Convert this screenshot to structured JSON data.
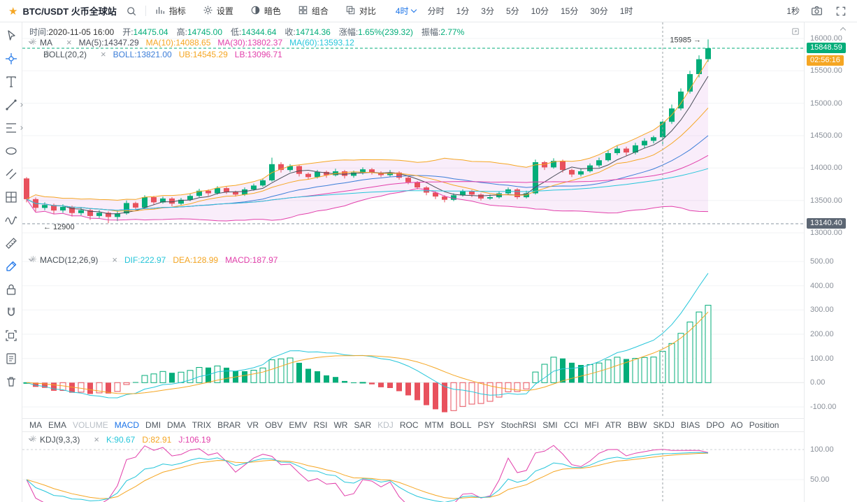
{
  "topbar": {
    "symbol": "BTC/USDT 火币全球站",
    "menu_items": [
      {
        "label": "指标",
        "icon": "indicator-icon"
      },
      {
        "label": "设置",
        "icon": "gear-icon"
      },
      {
        "label": "暗色",
        "icon": "theme-icon"
      },
      {
        "label": "组合",
        "icon": "layout-icon"
      },
      {
        "label": "对比",
        "icon": "compare-icon"
      }
    ],
    "active_timeframe": "4时",
    "timeframes": [
      "分时",
      "1分",
      "3分",
      "5分",
      "10分",
      "15分",
      "30分",
      "1时"
    ],
    "interval_label": "1秒",
    "right_icons": [
      "camera-icon",
      "fullscreen-icon"
    ]
  },
  "left_toolbar": [
    {
      "name": "cursor-icon",
      "active": false,
      "submenu": false
    },
    {
      "name": "crosshair-icon",
      "active": true,
      "submenu": false
    },
    {
      "name": "text-tool-icon",
      "active": false,
      "submenu": false
    },
    {
      "name": "trendline-icon",
      "active": false,
      "submenu": true
    },
    {
      "name": "fibonacci-icon",
      "active": false,
      "submenu": true
    },
    {
      "name": "ellipse-icon",
      "active": false,
      "submenu": false
    },
    {
      "name": "parallel-lines-icon",
      "active": false,
      "submenu": false
    },
    {
      "name": "gann-grid-icon",
      "active": false,
      "submenu": false
    },
    {
      "name": "wave-icon",
      "active": false,
      "submenu": false
    },
    {
      "name": "ruler-icon",
      "active": false,
      "submenu": false
    },
    {
      "name": "brush-icon",
      "active": true,
      "submenu": false
    },
    {
      "name": "lock-icon",
      "active": false,
      "submenu": false
    },
    {
      "name": "magnet-icon",
      "active": false,
      "submenu": false
    },
    {
      "name": "snapshot-icon",
      "active": false,
      "submenu": false
    },
    {
      "name": "order-icon",
      "active": false,
      "submenu": false
    },
    {
      "name": "trash-icon",
      "active": false,
      "submenu": false
    }
  ],
  "info_bar": {
    "time": {
      "label": "时间:",
      "value": "2020-11-05 16:00"
    },
    "fields": [
      {
        "label": "开:",
        "value": "14475.04"
      },
      {
        "label": "高:",
        "value": "14745.00"
      },
      {
        "label": "低:",
        "value": "14344.64"
      },
      {
        "label": "收:",
        "value": "14714.36"
      },
      {
        "label": "涨幅:",
        "value": "1.65%(239.32)"
      },
      {
        "label": "振幅:",
        "value": "2.77%"
      }
    ]
  },
  "legends": {
    "ma": {
      "name": "MA",
      "items": [
        {
          "label": "MA(5):",
          "value": "14347.29",
          "color": "#4a4e59"
        },
        {
          "label": "MA(10):",
          "value": "14088.65",
          "color": "#f5a623"
        },
        {
          "label": "MA(30):",
          "value": "13802.37",
          "color": "#e240ab"
        },
        {
          "label": "MA(60):",
          "value": "13593.12",
          "color": "#26c6da"
        }
      ]
    },
    "boll": {
      "name": "BOLL(20,2)",
      "items": [
        {
          "label": "BOLL:",
          "value": "13821.00",
          "color": "#3b7dd8"
        },
        {
          "label": "UB:",
          "value": "14545.29",
          "color": "#f5a623"
        },
        {
          "label": "LB:",
          "value": "13096.71",
          "color": "#e240ab"
        }
      ]
    },
    "macd": {
      "name": "MACD(12,26,9)",
      "items": [
        {
          "label": "DIF:",
          "value": "222.97",
          "color": "#26c6da"
        },
        {
          "label": "DEA:",
          "value": "128.99",
          "color": "#f5a623"
        },
        {
          "label": "MACD:",
          "value": "187.97",
          "color": "#e240ab"
        }
      ]
    },
    "kdj": {
      "name": "KDJ(9,3,3)",
      "items": [
        {
          "label": "K:",
          "value": "90.67",
          "color": "#26c6da"
        },
        {
          "label": "D:",
          "value": "82.91",
          "color": "#f5a623"
        },
        {
          "label": "J:",
          "value": "106.19",
          "color": "#e240ab"
        }
      ]
    }
  },
  "axes": {
    "main": [
      "16000.00",
      "15500.00",
      "15000.00",
      "14500.00",
      "14000.00",
      "13500.00",
      "13000.00"
    ],
    "macd": [
      "500.00",
      "400.00",
      "300.00",
      "200.00",
      "100.00",
      "0.00",
      "-100.00"
    ],
    "kdj": [
      "100.00",
      "50.00"
    ]
  },
  "badges": {
    "last_price": "15848.59",
    "countdown": "02:56:16",
    "alert_price": "13140.40"
  },
  "annotations": {
    "high_label": "15985 →",
    "low_label": "← 12900"
  },
  "indicator_tabs": [
    {
      "label": "MA",
      "state": "normal"
    },
    {
      "label": "EMA",
      "state": "normal"
    },
    {
      "label": "VOLUME",
      "state": "muted"
    },
    {
      "label": "MACD",
      "state": "active"
    },
    {
      "label": "DMI",
      "state": "normal"
    },
    {
      "label": "DMA",
      "state": "normal"
    },
    {
      "label": "TRIX",
      "state": "normal"
    },
    {
      "label": "BRAR",
      "state": "normal"
    },
    {
      "label": "VR",
      "state": "normal"
    },
    {
      "label": "OBV",
      "state": "normal"
    },
    {
      "label": "EMV",
      "state": "normal"
    },
    {
      "label": "RSI",
      "state": "normal"
    },
    {
      "label": "WR",
      "state": "normal"
    },
    {
      "label": "SAR",
      "state": "normal"
    },
    {
      "label": "KDJ",
      "state": "muted"
    },
    {
      "label": "ROC",
      "state": "normal"
    },
    {
      "label": "MTM",
      "state": "normal"
    },
    {
      "label": "BOLL",
      "state": "normal"
    },
    {
      "label": "PSY",
      "state": "normal"
    },
    {
      "label": "StochRSI",
      "state": "normal"
    },
    {
      "label": "SMI",
      "state": "normal"
    },
    {
      "label": "CCI",
      "state": "normal"
    },
    {
      "label": "MFI",
      "state": "normal"
    },
    {
      "label": "ATR",
      "state": "normal"
    },
    {
      "label": "BBW",
      "state": "normal"
    },
    {
      "label": "SKDJ",
      "state": "normal"
    },
    {
      "label": "BIAS",
      "state": "normal"
    },
    {
      "label": "DPO",
      "state": "normal"
    },
    {
      "label": "AO",
      "state": "normal"
    },
    {
      "label": "Position",
      "state": "normal"
    }
  ],
  "colors": {
    "up": "#03ad79",
    "down": "#e8515d",
    "accent": "#1a73e8",
    "ma5": "#4a4e59",
    "ma10": "#f5a623",
    "ma30": "#e240ab",
    "ma60": "#26c6da",
    "boll_mid": "#3b7dd8",
    "boll_band": "rgba(205,110,215,0.12)",
    "dif": "#26c6da",
    "dea": "#f5a623",
    "countdown": "#f5a623",
    "alert_badge": "#5c6673",
    "grid": "#f2f3f5",
    "crosshair": "#9aa0a6"
  },
  "chart_data": {
    "type": "candlestick",
    "panes": [
      {
        "name": "price",
        "indicators": [
          "MA(5,10,30,60)",
          "BOLL(20,2)"
        ],
        "y_range": [
          13000,
          16000
        ]
      },
      {
        "name": "MACD(12,26,9)",
        "y_range": [
          -100,
          500
        ]
      },
      {
        "name": "KDJ(9,3,3)",
        "y_range": [
          0,
          100
        ]
      }
    ],
    "crosshair_index": 70,
    "candles": [
      [
        13840,
        13860,
        13470,
        13520
      ],
      [
        13520,
        13545,
        13330,
        13385
      ],
      [
        13385,
        13470,
        13350,
        13430
      ],
      [
        13430,
        13450,
        13290,
        13345
      ],
      [
        13345,
        13440,
        13310,
        13400
      ],
      [
        13400,
        13420,
        13250,
        13305
      ],
      [
        13305,
        13390,
        13270,
        13350
      ],
      [
        13350,
        13370,
        13200,
        13260
      ],
      [
        13260,
        13350,
        13230,
        13310
      ],
      [
        13310,
        13330,
        13150,
        13245
      ],
      [
        13245,
        13340,
        13180,
        13300
      ],
      [
        13300,
        13500,
        13280,
        13460
      ],
      [
        13460,
        13480,
        13350,
        13390
      ],
      [
        13390,
        13580,
        13370,
        13550
      ],
      [
        13550,
        13570,
        13430,
        13470
      ],
      [
        13470,
        13560,
        13450,
        13530
      ],
      [
        13530,
        13550,
        13410,
        13450
      ],
      [
        13450,
        13540,
        13430,
        13510
      ],
      [
        13510,
        13600,
        13490,
        13570
      ],
      [
        13570,
        13680,
        13550,
        13650
      ],
      [
        13650,
        13670,
        13570,
        13610
      ],
      [
        13610,
        13720,
        13590,
        13690
      ],
      [
        13690,
        13710,
        13600,
        13630
      ],
      [
        13630,
        13650,
        13560,
        13590
      ],
      [
        13590,
        13700,
        13570,
        13670
      ],
      [
        13670,
        13760,
        13650,
        13730
      ],
      [
        13730,
        13840,
        13710,
        13810
      ],
      [
        13810,
        14160,
        13790,
        14060
      ],
      [
        14060,
        14090,
        13930,
        13970
      ],
      [
        13970,
        14060,
        13940,
        14030
      ],
      [
        14030,
        14050,
        13870,
        13910
      ],
      [
        13910,
        13930,
        13820,
        13860
      ],
      [
        13860,
        13970,
        13840,
        13940
      ],
      [
        13940,
        13960,
        13850,
        13890
      ],
      [
        13890,
        13990,
        13870,
        13950
      ],
      [
        13950,
        13970,
        13840,
        13880
      ],
      [
        13880,
        13960,
        13850,
        13930
      ],
      [
        13930,
        14010,
        13900,
        13980
      ],
      [
        13980,
        14000,
        13900,
        13930
      ],
      [
        13930,
        13950,
        13860,
        13890
      ],
      [
        13890,
        13970,
        13870,
        13930
      ],
      [
        13930,
        13950,
        13820,
        13850
      ],
      [
        13850,
        13870,
        13750,
        13780
      ],
      [
        13780,
        13800,
        13670,
        13700
      ],
      [
        13700,
        13720,
        13580,
        13620
      ],
      [
        13620,
        13640,
        13520,
        13560
      ],
      [
        13560,
        13580,
        13470,
        13510
      ],
      [
        13510,
        13610,
        13490,
        13580
      ],
      [
        13580,
        13670,
        13560,
        13640
      ],
      [
        13640,
        13660,
        13550,
        13590
      ],
      [
        13590,
        13610,
        13500,
        13530
      ],
      [
        13530,
        13590,
        13510,
        13550
      ],
      [
        13550,
        13640,
        13530,
        13610
      ],
      [
        13610,
        13700,
        13590,
        13670
      ],
      [
        13670,
        13690,
        13520,
        13550
      ],
      [
        13550,
        13650,
        13530,
        13610
      ],
      [
        13610,
        14130,
        13590,
        14090
      ],
      [
        14090,
        14110,
        13970,
        14010
      ],
      [
        14010,
        14150,
        13990,
        14110
      ],
      [
        14110,
        14130,
        13930,
        13970
      ],
      [
        13970,
        13990,
        13860,
        13900
      ],
      [
        13900,
        13990,
        13870,
        13950
      ],
      [
        13950,
        14070,
        13930,
        14040
      ],
      [
        14040,
        14160,
        14010,
        14120
      ],
      [
        14120,
        14270,
        14100,
        14230
      ],
      [
        14230,
        14340,
        14200,
        14300
      ],
      [
        14300,
        14330,
        14190,
        14240
      ],
      [
        14240,
        14390,
        14210,
        14350
      ],
      [
        14350,
        14460,
        14310,
        14420
      ],
      [
        14420,
        14500,
        14380,
        14475
      ],
      [
        14475.04,
        14745.0,
        14344.64,
        14714.36
      ],
      [
        14714,
        14980,
        14680,
        14920
      ],
      [
        14920,
        15230,
        14890,
        15180
      ],
      [
        15180,
        15500,
        15150,
        15450
      ],
      [
        15450,
        15740,
        15400,
        15680
      ],
      [
        15680,
        15985,
        15640,
        15848.59
      ]
    ]
  }
}
